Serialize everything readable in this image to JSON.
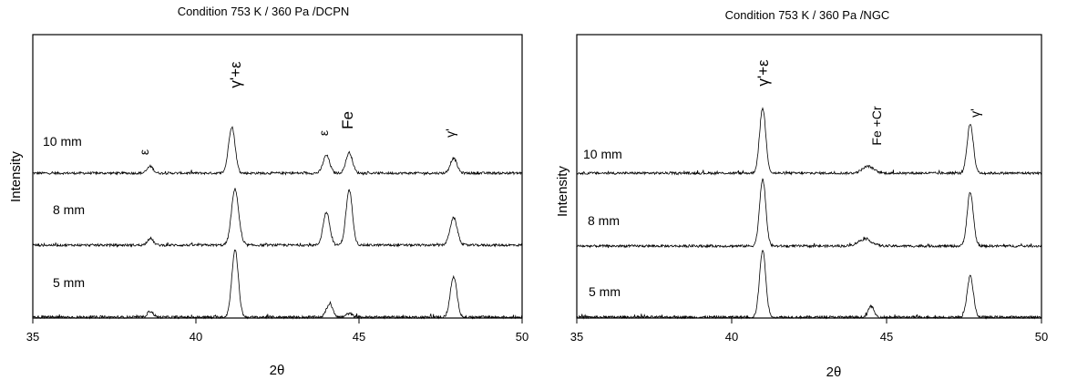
{
  "chart_data": [
    {
      "type": "line",
      "title": "Condition  753 K / 360 Pa /DCPN",
      "xlabel": "2θ",
      "ylabel": "Intensity",
      "xlim": [
        35,
        50
      ],
      "xticks": [
        "35",
        "40",
        "45",
        "50"
      ],
      "traces": [
        {
          "label": "10 mm",
          "peaks": [
            {
              "x": 38.6,
              "h": 0.1,
              "w": 0.09
            },
            {
              "x": 41.1,
              "h": 0.68,
              "w": 0.1
            },
            {
              "x": 44.0,
              "h": 0.26,
              "w": 0.1
            },
            {
              "x": 44.7,
              "h": 0.3,
              "w": 0.1
            },
            {
              "x": 47.9,
              "h": 0.22,
              "w": 0.1
            }
          ]
        },
        {
          "label": "8 mm",
          "peaks": [
            {
              "x": 38.6,
              "h": 0.1,
              "w": 0.09
            },
            {
              "x": 41.2,
              "h": 0.82,
              "w": 0.11
            },
            {
              "x": 44.0,
              "h": 0.48,
              "w": 0.1
            },
            {
              "x": 44.7,
              "h": 0.8,
              "w": 0.1
            },
            {
              "x": 47.9,
              "h": 0.4,
              "w": 0.11
            }
          ]
        },
        {
          "label": "5 mm",
          "peaks": [
            {
              "x": 38.6,
              "h": 0.08,
              "w": 0.09
            },
            {
              "x": 41.2,
              "h": 0.92,
              "w": 0.1
            },
            {
              "x": 44.1,
              "h": 0.18,
              "w": 0.1
            },
            {
              "x": 44.7,
              "h": 0.05,
              "w": 0.09
            },
            {
              "x": 47.9,
              "h": 0.55,
              "w": 0.1
            }
          ]
        }
      ],
      "annotations": [
        {
          "text": "ε",
          "x": 38.6,
          "size": "small"
        },
        {
          "text": "γ'+ε",
          "x": 41.2,
          "size": "big"
        },
        {
          "text": "ε",
          "x": 44.0,
          "size": "small"
        },
        {
          "text": "Fe",
          "x": 44.75,
          "size": "big"
        },
        {
          "text": "γ'",
          "x": 47.9,
          "size": "small"
        }
      ]
    },
    {
      "type": "line",
      "title": "Condition  753 K / 360 Pa /NGC",
      "xlabel": "2θ",
      "ylabel": "Intensity",
      "xlim": [
        35,
        50
      ],
      "xticks": [
        "35",
        "40",
        "45",
        "50"
      ],
      "traces": [
        {
          "label": "10 mm",
          "peaks": [
            {
              "x": 41.0,
              "h": 0.95,
              "w": 0.1
            },
            {
              "x": 44.4,
              "h": 0.1,
              "w": 0.18
            },
            {
              "x": 47.7,
              "h": 0.72,
              "w": 0.1
            }
          ]
        },
        {
          "label": "8 mm",
          "peaks": [
            {
              "x": 41.0,
              "h": 0.98,
              "w": 0.1
            },
            {
              "x": 44.3,
              "h": 0.1,
              "w": 0.22
            },
            {
              "x": 47.7,
              "h": 0.78,
              "w": 0.1
            }
          ]
        },
        {
          "label": "5 mm",
          "peaks": [
            {
              "x": 41.0,
              "h": 0.98,
              "w": 0.1
            },
            {
              "x": 44.5,
              "h": 0.16,
              "w": 0.09
            },
            {
              "x": 47.7,
              "h": 0.6,
              "w": 0.1
            }
          ]
        }
      ],
      "annotations": [
        {
          "text": "γ'+ε",
          "x": 41.0,
          "size": "big"
        },
        {
          "text": "Fe +Cr",
          "x": 44.45,
          "size": "small"
        },
        {
          "text": "γ'",
          "x": 47.7,
          "size": "small"
        }
      ]
    }
  ]
}
